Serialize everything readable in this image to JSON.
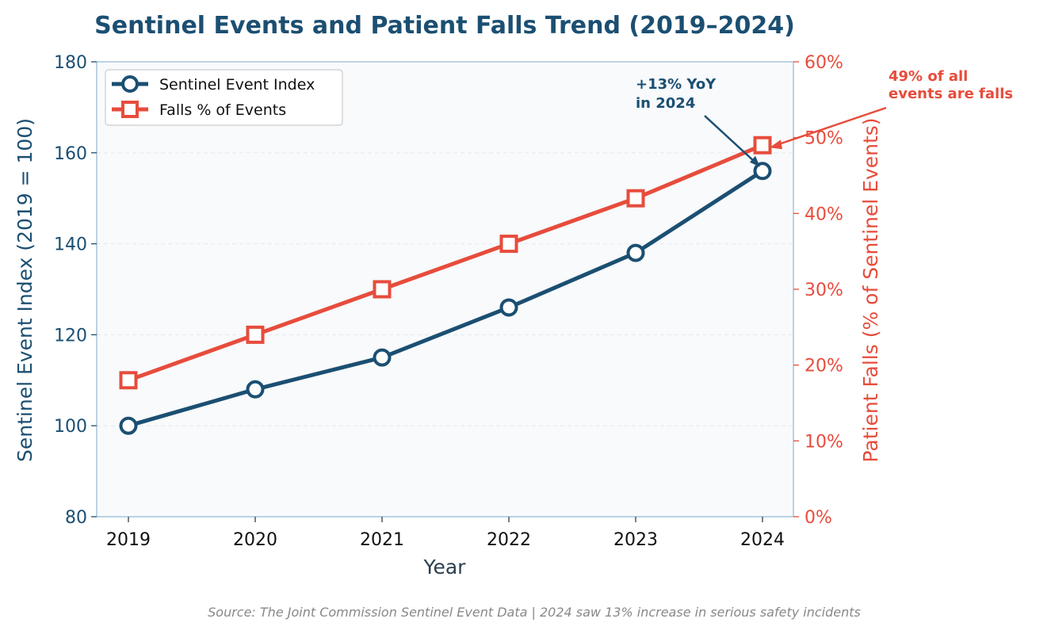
{
  "chart_data": {
    "type": "line",
    "title": "Sentinel Events and Patient Falls Trend (2019–2024)",
    "xlabel": "Year",
    "ylabel_left": "Sentinel Event Index (2019 = 100)",
    "ylabel_right": "Patient Falls (% of Sentinel Events)",
    "x": [
      "2019",
      "2020",
      "2021",
      "2022",
      "2023",
      "2024"
    ],
    "ylim_left": [
      80,
      180
    ],
    "yticks_left": [
      "80",
      "100",
      "120",
      "140",
      "160",
      "180"
    ],
    "ylim_right": [
      0,
      60
    ],
    "yticks_right": [
      "0%",
      "10%",
      "20%",
      "30%",
      "40%",
      "50%",
      "60%"
    ],
    "series": [
      {
        "name": "Sentinel Event Index",
        "axis": "left",
        "marker": "circle",
        "color": "#1b4f72",
        "values": [
          100,
          108,
          115,
          126,
          138,
          156
        ]
      },
      {
        "name": "Falls % of Events",
        "axis": "right",
        "marker": "square",
        "color": "#e74c3c",
        "values": [
          18,
          24,
          30,
          36,
          42,
          49
        ]
      }
    ],
    "legend": "top-left",
    "grid": "horizontal-dashed",
    "annotations": [
      {
        "lines": [
          "+13% YoY",
          "in 2024"
        ],
        "series": "Sentinel Event Index",
        "x": "2024",
        "y": 156,
        "color": "#1b4f72"
      },
      {
        "lines": [
          "49% of all",
          "events are falls"
        ],
        "series": "Falls % of Events",
        "x": "2024",
        "y": 49,
        "color": "#e74c3c"
      }
    ],
    "source": "Source: The Joint Commission Sentinel Event Data | 2024 saw 13% increase in serious safety incidents",
    "colors": {
      "navy": "#1b4f72",
      "red": "#e74c3c",
      "plot_bg": "#f8fafc",
      "spine": "#a9c4d9",
      "axis_text": "#2c3e50",
      "source_text": "#888888"
    }
  }
}
